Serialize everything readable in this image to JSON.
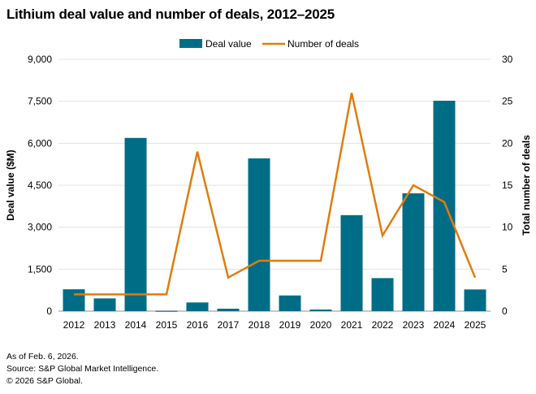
{
  "chart_data": {
    "type": "bar+line",
    "title": "Lithium deal value and number of deals, 2012–2025",
    "categories": [
      "2012",
      "2013",
      "2014",
      "2015",
      "2016",
      "2017",
      "2018",
      "2019",
      "2020",
      "2021",
      "2022",
      "2023",
      "2024",
      "2025"
    ],
    "series": [
      {
        "name": "Deal value",
        "type": "bar",
        "axis": "left",
        "color": "#006d86",
        "values": [
          780,
          455,
          6190,
          10,
          310,
          87,
          5460,
          560,
          58,
          3430,
          1180,
          4210,
          7520,
          775
        ]
      },
      {
        "name": "Number of deals",
        "type": "line",
        "axis": "right",
        "color": "#e07c0e",
        "values": [
          2,
          2,
          2,
          2,
          19,
          4,
          6,
          6,
          6,
          26,
          9,
          15,
          13,
          4
        ]
      }
    ],
    "ylabel": "Deal value ($M)",
    "ylabel_right": "Total number of deals",
    "ylim": [
      0,
      9000
    ],
    "yticks": [
      "0",
      "1,500",
      "3,000",
      "4,500",
      "6,000",
      "7,500",
      "9,000"
    ],
    "ylim_right": [
      0,
      30
    ],
    "yticks_right": [
      "0",
      "5",
      "10",
      "15",
      "20",
      "25",
      "30"
    ],
    "grid": true,
    "legend": "top-center"
  },
  "notes": [
    "As of Feb. 6, 2026.",
    "Source: S&P Global Market Intelligence.",
    "© 2026 S&P Global."
  ]
}
